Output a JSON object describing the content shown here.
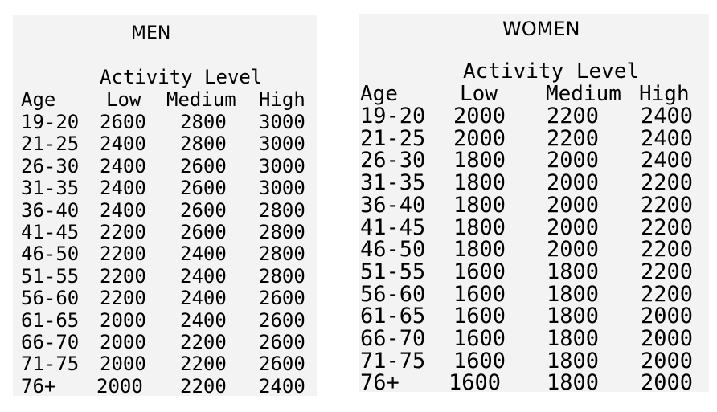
{
  "men": {
    "title": "MEN",
    "activity_label": "Activity Level",
    "headers": [
      "Age",
      "Low",
      "Medium",
      "High"
    ],
    "rows": [
      [
        "19-20",
        "2600",
        "2800",
        "3000"
      ],
      [
        "21-25",
        "2400",
        "2800",
        "3000"
      ],
      [
        "26-30",
        "2400",
        "2600",
        "3000"
      ],
      [
        "31-35",
        "2400",
        "2600",
        "3000"
      ],
      [
        "36-40",
        "2400",
        "2600",
        "2800"
      ],
      [
        "41-45",
        "2200",
        "2600",
        "2800"
      ],
      [
        "46-50",
        "2200",
        "2400",
        "2800"
      ],
      [
        "51-55",
        "2200",
        "2400",
        "2800"
      ],
      [
        "56-60",
        "2200",
        "2400",
        "2600"
      ],
      [
        "61-65",
        "2000",
        "2400",
        "2600"
      ],
      [
        "66-70",
        "2000",
        "2200",
        "2600"
      ],
      [
        "71-75",
        "2000",
        "2200",
        "2600"
      ],
      [
        "76+",
        "2000",
        "2200",
        "2400"
      ]
    ]
  },
  "women": {
    "title": "WOMEN",
    "activity_label": "Activity Level",
    "headers": [
      "Age",
      "Low",
      "Medium",
      "High"
    ],
    "rows": [
      [
        "19-20",
        "2000",
        "2200",
        "2400"
      ],
      [
        "21-25",
        "2000",
        "2200",
        "2400"
      ],
      [
        "26-30",
        "1800",
        "2000",
        "2400"
      ],
      [
        "31-35",
        "1800",
        "2000",
        "2200"
      ],
      [
        "36-40",
        "1800",
        "2000",
        "2200"
      ],
      [
        "41-45",
        "1800",
        "2000",
        "2200"
      ],
      [
        "46-50",
        "1800",
        "2000",
        "2200"
      ],
      [
        "51-55",
        "1600",
        "1800",
        "2200"
      ],
      [
        "56-60",
        "1600",
        "1800",
        "2200"
      ],
      [
        "61-65",
        "1600",
        "1800",
        "2000"
      ],
      [
        "66-70",
        "1600",
        "1800",
        "2000"
      ],
      [
        "71-75",
        "1600",
        "1800",
        "2000"
      ],
      [
        "76+",
        "1600",
        "1800",
        "2000"
      ]
    ]
  }
}
